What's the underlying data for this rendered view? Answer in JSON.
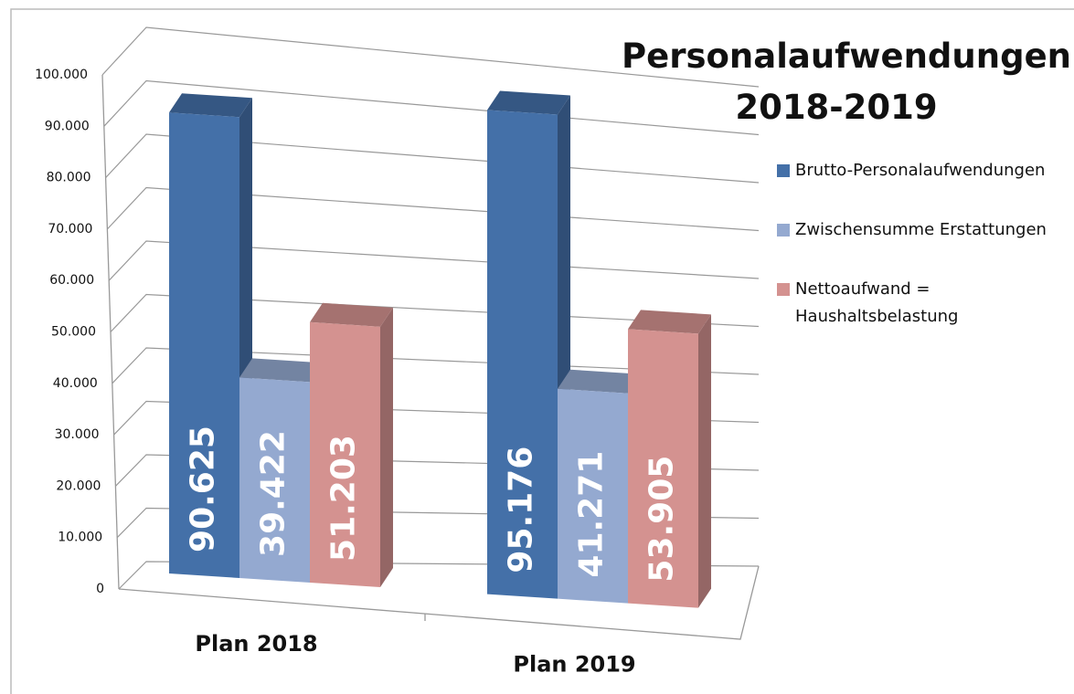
{
  "chart_data": {
    "type": "bar3d",
    "title": "Personalaufwendungen 2018-2019",
    "categories": [
      "Plan 2018",
      "Plan 2019"
    ],
    "series": [
      {
        "name": "Brutto-Personalaufwendungen",
        "color": "#4470a8",
        "values": [
          90625,
          95176
        ],
        "value_labels": [
          "90.625",
          "95.176"
        ]
      },
      {
        "name": "Zwischensumme Erstattungen",
        "color": "#94a9d0",
        "values": [
          39422,
          41271
        ],
        "value_labels": [
          "39.422",
          "41.271"
        ]
      },
      {
        "name": "Nettoaufwand = Haushaltsbelastung",
        "color": "#d49290",
        "values": [
          51203,
          53905
        ],
        "value_labels": [
          "51.203",
          "53.905"
        ]
      }
    ],
    "ylim": [
      0,
      100000
    ],
    "yticks": [
      0,
      {
        "value": 10000,
        "label": "10.000"
      },
      {
        "value": 20000,
        "label": "20.000"
      },
      {
        "value": 30000,
        "label": "30.000"
      },
      {
        "value": 40000,
        "label": "40.000"
      },
      {
        "value": 50000,
        "label": "50.000"
      },
      {
        "value": 60000,
        "label": "60.000"
      },
      {
        "value": 70000,
        "label": "70.000"
      },
      {
        "value": 80000,
        "label": "80.000"
      },
      {
        "value": 90000,
        "label": "90.000"
      },
      {
        "value": 100000,
        "label": "100.000"
      }
    ],
    "grid": true,
    "legend": "right"
  }
}
